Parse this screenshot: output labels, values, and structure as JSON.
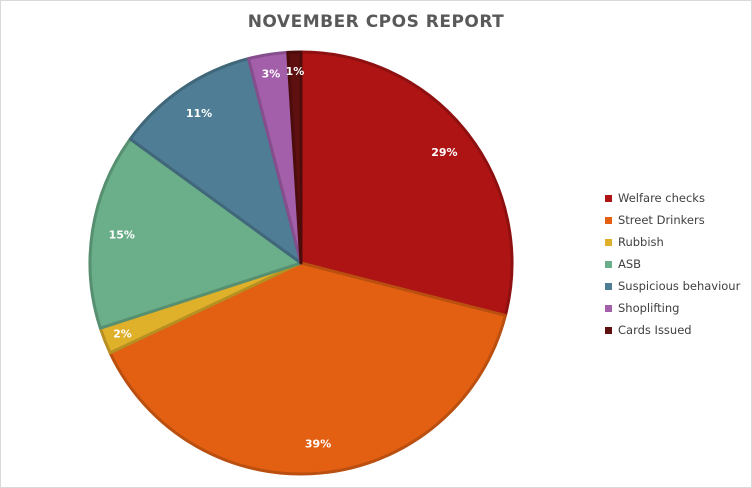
{
  "chart_data": {
    "type": "pie",
    "title": "NOVEMBER CPOS REPORT",
    "categories": [
      "Welfare checks",
      "Street Drinkers",
      "Rubbish",
      "ASB",
      "Suspicious behaviour",
      "Shoplifting",
      "Cards Issued"
    ],
    "values": [
      29,
      39,
      2,
      15,
      11,
      3,
      1
    ],
    "data_labels": [
      "29%",
      "39%",
      "2%",
      "15%",
      "11%",
      "3%",
      "1%"
    ],
    "colors": [
      "#ae1414",
      "#e36013",
      "#dfb02a",
      "#6aae8a",
      "#4e7d95",
      "#a45fab",
      "#5e0f0f"
    ],
    "legend_position": "right"
  }
}
